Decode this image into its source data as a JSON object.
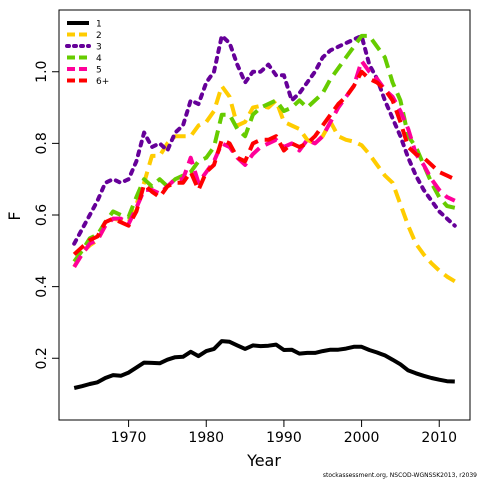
{
  "chart_data": {
    "type": "line",
    "title": "",
    "xlabel": "Year",
    "ylabel": "F",
    "xlim": [
      1963,
      2012
    ],
    "ylim": [
      0.07,
      1.13
    ],
    "x_ticks": [
      1970,
      1980,
      1990,
      2000,
      2010
    ],
    "y_ticks": [
      0.2,
      0.4,
      0.6,
      0.8,
      1.0
    ],
    "x_tick_labels": [
      "1970",
      "1980",
      "1990",
      "2000",
      "2010"
    ],
    "y_tick_labels": [
      "0.2",
      "0.4",
      "0.6",
      "0.8",
      "1.0"
    ],
    "grid": false,
    "legend_position": "top-left",
    "footnote": "stockassessment.org, NSCOD-WGNSSK2013, r2039",
    "x": [
      1963,
      1964,
      1965,
      1966,
      1967,
      1968,
      1969,
      1970,
      1971,
      1972,
      1973,
      1974,
      1975,
      1976,
      1977,
      1978,
      1979,
      1980,
      1981,
      1982,
      1983,
      1984,
      1985,
      1986,
      1987,
      1988,
      1989,
      1990,
      1991,
      1992,
      1993,
      1994,
      1995,
      1996,
      1997,
      1998,
      1999,
      2000,
      2001,
      2002,
      2003,
      2004,
      2005,
      2006,
      2007,
      2008,
      2009,
      2010,
      2011,
      2012
    ],
    "series": [
      {
        "name": "1",
        "color": "#000000",
        "dash": "solid",
        "values": [
          0.117,
          0.122,
          0.128,
          0.133,
          0.145,
          0.153,
          0.151,
          0.16,
          0.174,
          0.188,
          0.187,
          0.186,
          0.196,
          0.203,
          0.204,
          0.218,
          0.206,
          0.22,
          0.226,
          0.248,
          0.246,
          0.236,
          0.226,
          0.236,
          0.234,
          0.235,
          0.238,
          0.223,
          0.224,
          0.213,
          0.215,
          0.215,
          0.22,
          0.224,
          0.224,
          0.227,
          0.232,
          0.232,
          0.223,
          0.216,
          0.208,
          0.196,
          0.183,
          0.166,
          0.158,
          0.151,
          0.145,
          0.14,
          0.136,
          0.135
        ]
      },
      {
        "name": "2",
        "color": "#ffcc00",
        "dash": "dashed",
        "values": [
          0.455,
          0.495,
          0.515,
          0.53,
          0.57,
          0.59,
          0.585,
          0.58,
          0.63,
          0.69,
          0.765,
          0.765,
          0.8,
          0.82,
          0.82,
          0.82,
          0.85,
          0.86,
          0.89,
          0.96,
          0.93,
          0.85,
          0.86,
          0.9,
          0.905,
          0.9,
          0.92,
          0.86,
          0.85,
          0.84,
          0.81,
          0.8,
          0.82,
          0.86,
          0.82,
          0.81,
          0.805,
          0.795,
          0.77,
          0.74,
          0.71,
          0.69,
          0.63,
          0.57,
          0.52,
          0.49,
          0.465,
          0.445,
          0.428,
          0.415
        ]
      },
      {
        "name": "3",
        "color": "#660099",
        "dash": "dotted",
        "values": [
          0.52,
          0.56,
          0.6,
          0.64,
          0.69,
          0.7,
          0.69,
          0.7,
          0.75,
          0.83,
          0.79,
          0.8,
          0.78,
          0.83,
          0.85,
          0.92,
          0.91,
          0.97,
          1.0,
          1.1,
          1.08,
          1.02,
          0.97,
          1.0,
          1.0,
          1.02,
          0.99,
          0.99,
          0.92,
          0.94,
          0.97,
          1.0,
          1.04,
          1.06,
          1.07,
          1.08,
          1.09,
          1.1,
          1.02,
          0.98,
          0.92,
          0.87,
          0.82,
          0.76,
          0.71,
          0.67,
          0.64,
          0.61,
          0.59,
          0.57
        ]
      },
      {
        "name": "4",
        "color": "#66cc00",
        "dash": "dashed",
        "values": [
          0.47,
          0.5,
          0.535,
          0.545,
          0.58,
          0.61,
          0.6,
          0.595,
          0.65,
          0.7,
          0.68,
          0.7,
          0.68,
          0.7,
          0.71,
          0.72,
          0.75,
          0.76,
          0.79,
          0.88,
          0.88,
          0.84,
          0.82,
          0.88,
          0.9,
          0.91,
          0.92,
          0.89,
          0.9,
          0.92,
          0.9,
          0.92,
          0.94,
          0.98,
          1.01,
          1.04,
          1.07,
          1.1,
          1.1,
          1.07,
          1.04,
          0.97,
          0.92,
          0.82,
          0.79,
          0.74,
          0.69,
          0.65,
          0.625,
          0.62
        ]
      },
      {
        "name": "5",
        "color": "#ff0099",
        "dash": "dashed",
        "values": [
          0.455,
          0.49,
          0.52,
          0.53,
          0.57,
          0.59,
          0.59,
          0.575,
          0.62,
          0.67,
          0.67,
          0.66,
          0.68,
          0.7,
          0.7,
          0.76,
          0.69,
          0.72,
          0.75,
          0.8,
          0.79,
          0.76,
          0.74,
          0.77,
          0.79,
          0.8,
          0.81,
          0.79,
          0.8,
          0.78,
          0.81,
          0.8,
          0.82,
          0.86,
          0.9,
          0.93,
          0.96,
          1.03,
          1.0,
          0.98,
          0.95,
          0.93,
          0.89,
          0.84,
          0.77,
          0.74,
          0.7,
          0.67,
          0.65,
          0.64
        ]
      },
      {
        "name": "6+",
        "color": "#ff0000",
        "dash": "dashed",
        "values": [
          0.49,
          0.51,
          0.53,
          0.54,
          0.58,
          0.59,
          0.58,
          0.57,
          0.61,
          0.685,
          0.665,
          0.65,
          0.68,
          0.69,
          0.69,
          0.72,
          0.67,
          0.72,
          0.74,
          0.81,
          0.8,
          0.76,
          0.75,
          0.8,
          0.81,
          0.81,
          0.82,
          0.78,
          0.8,
          0.79,
          0.8,
          0.82,
          0.85,
          0.88,
          0.91,
          0.93,
          0.96,
          1.0,
          0.98,
          0.97,
          0.95,
          0.92,
          0.86,
          0.79,
          0.77,
          0.76,
          0.74,
          0.72,
          0.71,
          0.7
        ]
      }
    ]
  }
}
